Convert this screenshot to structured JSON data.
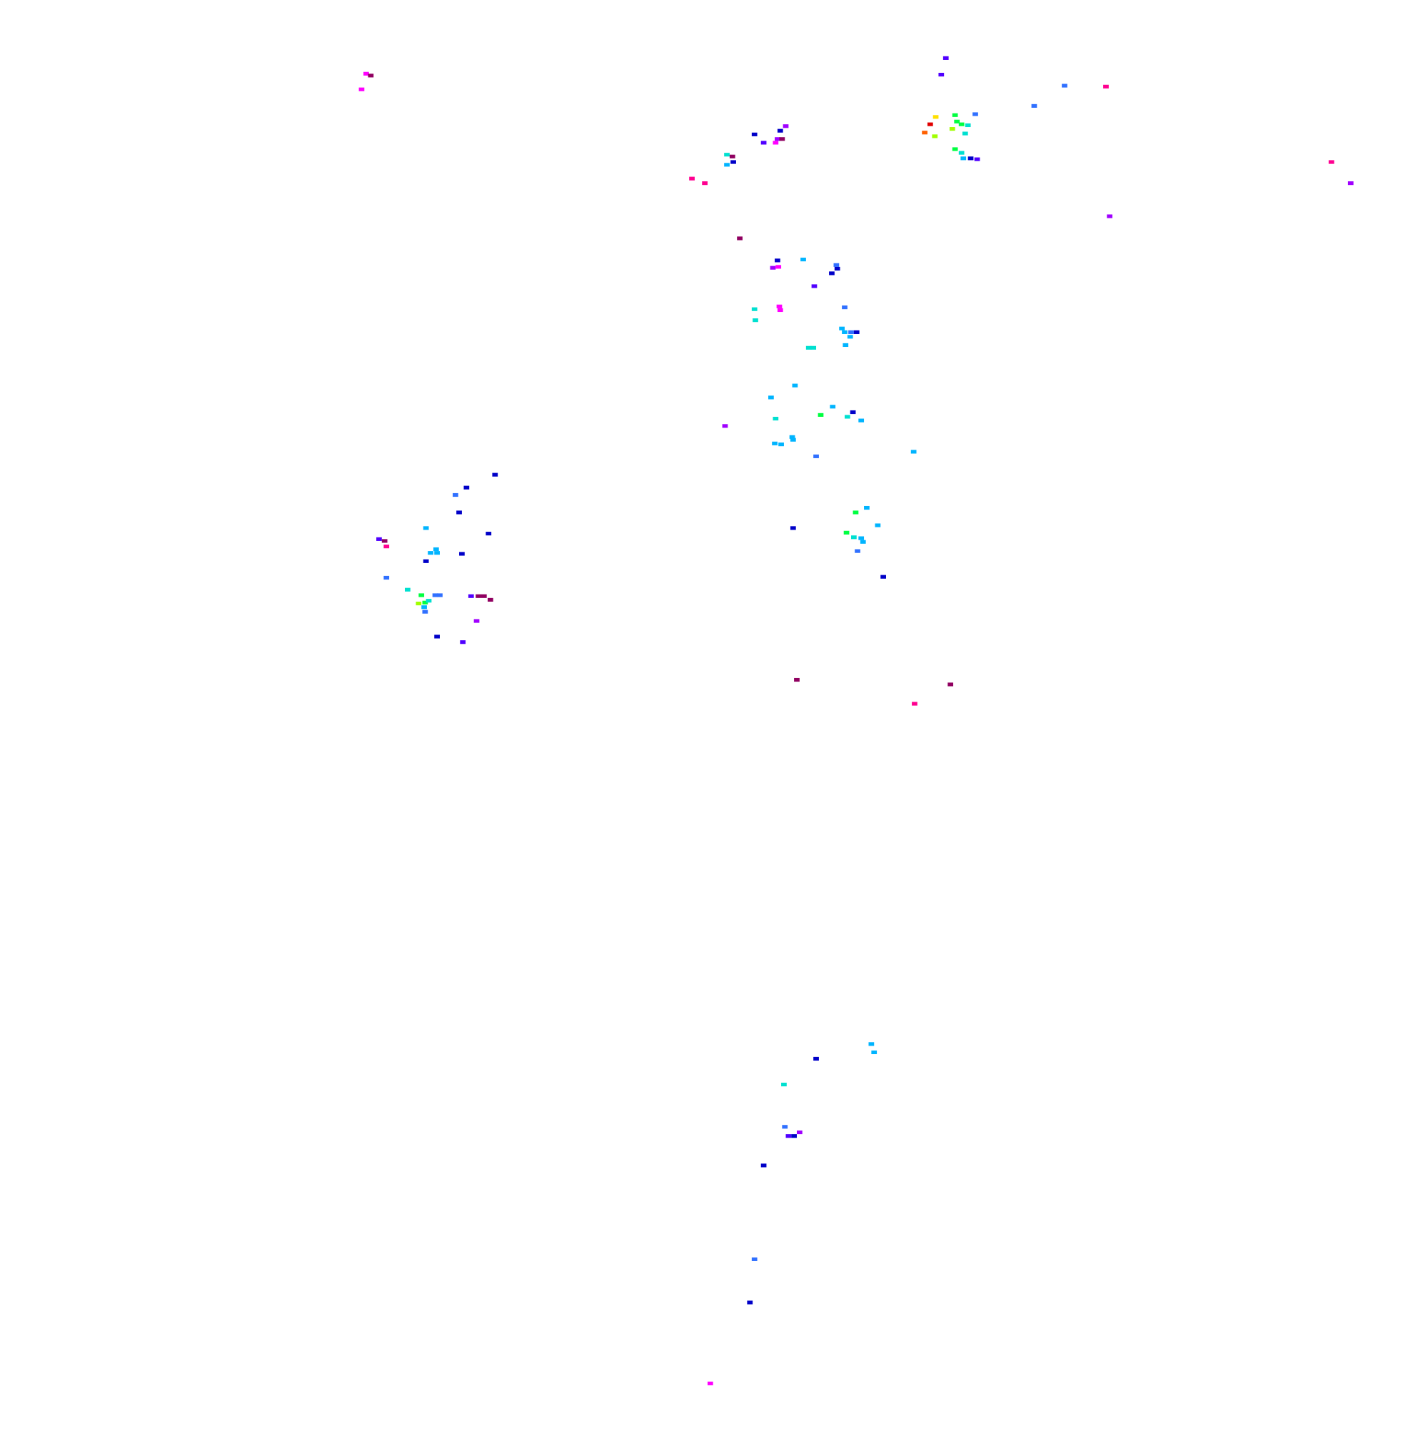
{
  "map": {
    "background": "#ffffff",
    "marker_colors": {
      "navy": "#0000c8",
      "blue": "#3070ff",
      "sky": "#00b4ff",
      "cyan": "#00e0d0",
      "green": "#00ff40",
      "lime": "#a0ff00",
      "yellow": "#ffe000",
      "orange": "#ff6000",
      "red": "#e00000",
      "violet": "#5000ff",
      "purple": "#a000ff",
      "magenta": "#ff00ff",
      "pink": "#ff0090",
      "maroon": "#900060"
    }
  }
}
